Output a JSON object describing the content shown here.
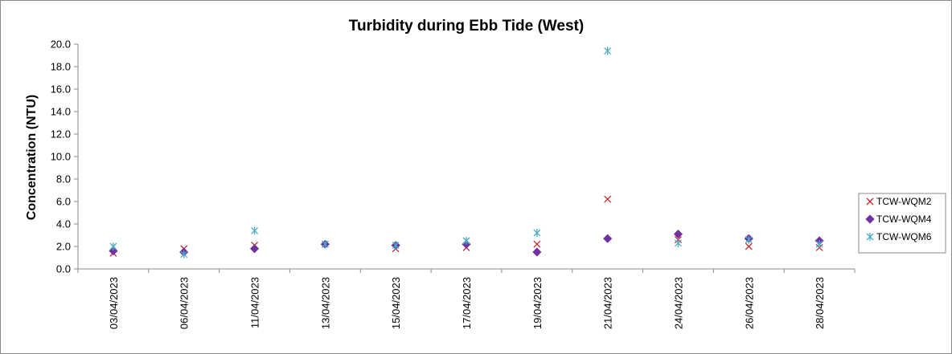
{
  "chart_data": {
    "type": "scatter",
    "title": "Turbidity during Ebb Tide (West)",
    "xlabel": "",
    "ylabel": "Concentration (NTU)",
    "categories": [
      "03/04/2023",
      "06/04/2023",
      "11/04/2023",
      "13/04/2023",
      "15/04/2023",
      "17/04/2023",
      "19/04/2023",
      "21/04/2023",
      "24/04/2023",
      "26/04/2023",
      "28/04/2023"
    ],
    "ylim": [
      0,
      20
    ],
    "ytick_step": 2,
    "ytick_labels": [
      "0.0",
      "2.0",
      "4.0",
      "6.0",
      "8.0",
      "10.0",
      "12.0",
      "14.0",
      "16.0",
      "18.0",
      "20.0"
    ],
    "grid": false,
    "legend_position": "right",
    "series": [
      {
        "name": "TCW-WQM2",
        "marker": "x",
        "color": "#c0282d",
        "values": [
          1.4,
          1.8,
          2.1,
          2.2,
          1.8,
          1.9,
          2.2,
          6.2,
          2.6,
          2.0,
          1.9
        ]
      },
      {
        "name": "TCW-WQM4",
        "marker": "diamond",
        "color": "#7030a0",
        "values": [
          1.6,
          1.5,
          1.8,
          2.2,
          2.1,
          2.2,
          1.5,
          2.7,
          3.1,
          2.7,
          2.5
        ]
      },
      {
        "name": "TCW-WQM6",
        "marker": "star",
        "color": "#4bacc6",
        "values": [
          2.0,
          1.3,
          3.4,
          2.2,
          2.1,
          2.5,
          3.2,
          19.4,
          2.3,
          2.6,
          2.2
        ]
      }
    ]
  }
}
